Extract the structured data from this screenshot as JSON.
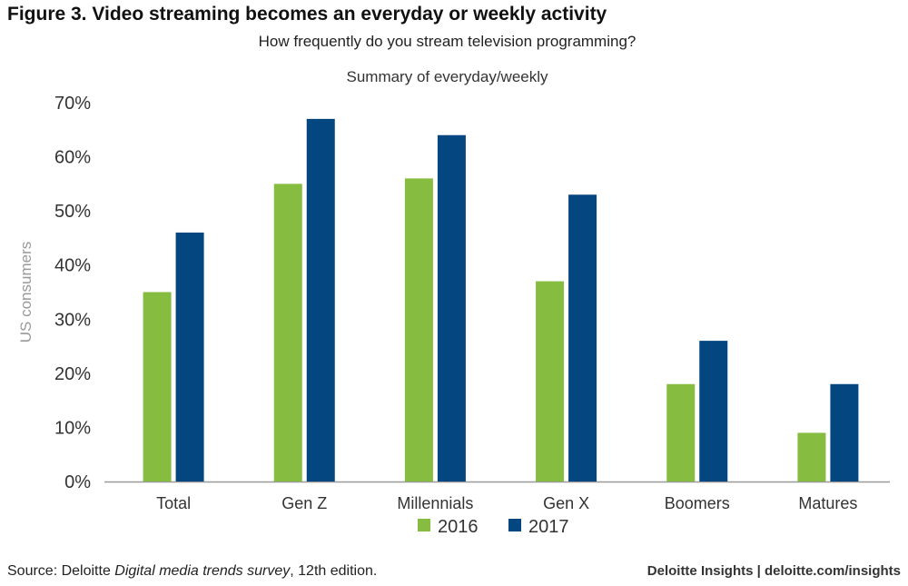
{
  "header": {
    "title": "Figure 3. Video streaming becomes an everyday or weekly activity",
    "subtitle": "How frequently do you stream television programming?",
    "summary": "Summary of everyday/weekly"
  },
  "footer": {
    "source_prefix": "Source: Deloitte ",
    "source_italic": "Digital media trends survey",
    "source_suffix": ", 12th edition.",
    "brand": "Deloitte Insights | deloitte.com/insights"
  },
  "colors": {
    "series_2016": "#86bc40",
    "series_2017": "#044780",
    "axis": "#999999",
    "tick_text": "#333333",
    "ylabel_text": "#999999"
  },
  "chart_data": {
    "type": "bar",
    "ylabel": "US consumers",
    "ylim": [
      0,
      70
    ],
    "yticks": [
      0,
      10,
      20,
      30,
      40,
      50,
      60,
      70
    ],
    "ytick_labels": [
      "0%",
      "10%",
      "20%",
      "30%",
      "40%",
      "50%",
      "60%",
      "70%"
    ],
    "categories": [
      "Total",
      "Gen Z",
      "Millennials",
      "Gen X",
      "Boomers",
      "Matures"
    ],
    "series": [
      {
        "name": "2016",
        "values": [
          35,
          55,
          56,
          37,
          18,
          9
        ]
      },
      {
        "name": "2017",
        "values": [
          46,
          67,
          64,
          53,
          26,
          18
        ]
      }
    ],
    "legend_position": "bottom-center",
    "grid": false
  }
}
